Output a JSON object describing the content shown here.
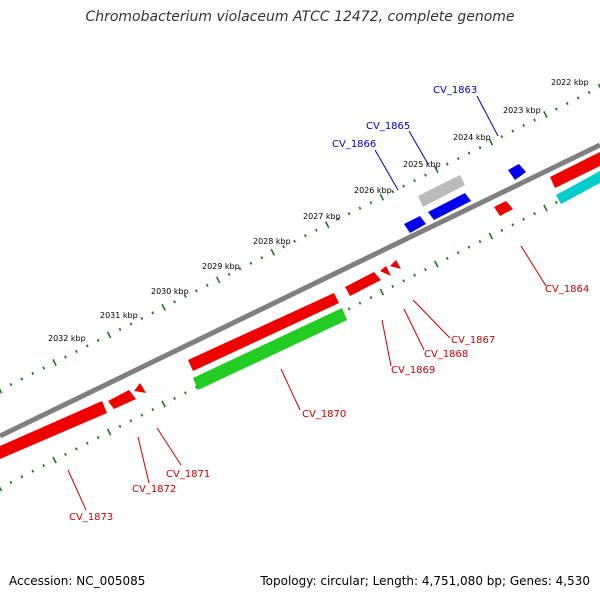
{
  "title": "Chromobacterium violaceum ATCC 12472, complete genome",
  "footer": {
    "accession": "Accession: NC_005085",
    "summary": "Topology: circular; Length: 4,751,080 bp; Genes: 4,530"
  },
  "colors": {
    "backbone": "#7f7f7f",
    "tick": "#1a7a1a",
    "forward_label": "#0000cc",
    "reverse_label": "#cc0000",
    "red": "#ee0000",
    "blue": "#0000ee",
    "green": "#22cc22",
    "cyan": "#00cccc",
    "grey": "#bbbbbb"
  },
  "kbp_labels": [
    "2022 kbp",
    "2023 kbp",
    "2024 kbp",
    "2025 kbp",
    "2026 kbp",
    "2027 kbp",
    "2028 kbp",
    "2029 kbp",
    "2030 kbp",
    "2031 kbp",
    "2032 kbp"
  ],
  "gene_labels": [
    "CV_1863",
    "CV_1865",
    "CV_1866",
    "CV_1864",
    "CV_1867",
    "CV_1868",
    "CV_1869",
    "CV_1870",
    "CV_1871",
    "CV_1872",
    "CV_1873"
  ]
}
